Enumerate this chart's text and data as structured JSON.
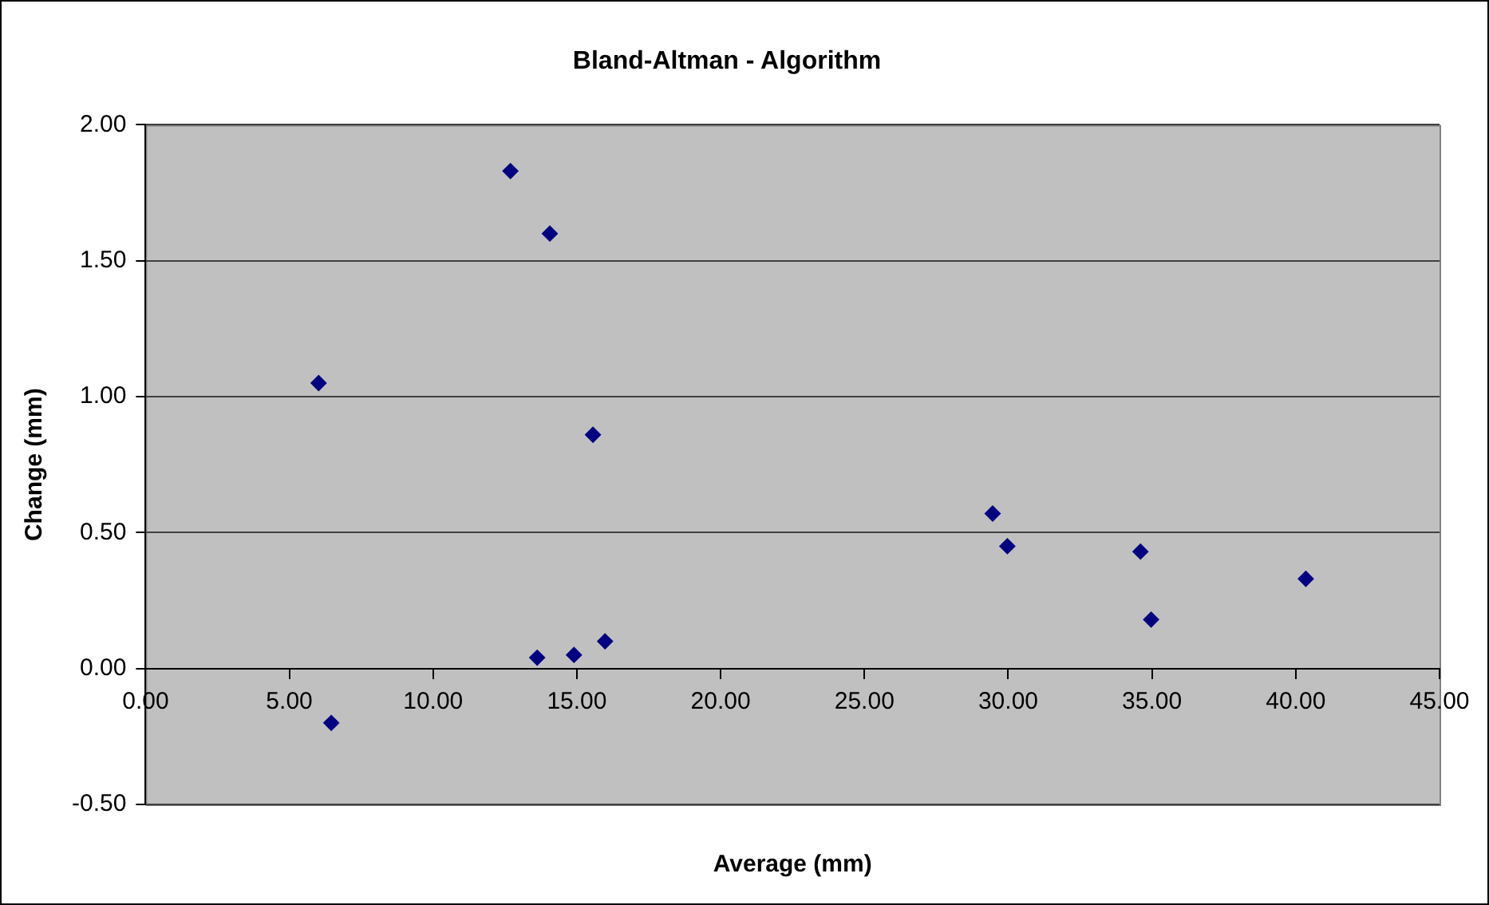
{
  "chart_data": {
    "type": "scatter",
    "title": "Bland-Altman - Algorithm",
    "xlabel": "Average (mm)",
    "ylabel": "Change (mm)",
    "x": [
      6.02,
      6.46,
      12.69,
      14.06,
      15.56,
      13.62,
      14.9,
      15.98,
      29.46,
      29.97,
      34.6,
      34.97,
      40.35
    ],
    "series": [
      {
        "color": "#000080",
        "values": [
          1.05,
          -0.2,
          1.83,
          1.6,
          0.86,
          0.04,
          0.05,
          0.1,
          0.57,
          0.45,
          0.43,
          0.18,
          0.33
        ]
      }
    ],
    "xlim": [
      0,
      45
    ],
    "ylim": [
      -0.5,
      2
    ],
    "xticks": [
      {
        "value": 0,
        "label": "0.00"
      },
      {
        "value": 5,
        "label": "5.00"
      },
      {
        "value": 10,
        "label": "10.00"
      },
      {
        "value": 15,
        "label": "15.00"
      },
      {
        "value": 20,
        "label": "20.00"
      },
      {
        "value": 25,
        "label": "25.00"
      },
      {
        "value": 30,
        "label": "30.00"
      },
      {
        "value": 35,
        "label": "35.00"
      },
      {
        "value": 40,
        "label": "40.00"
      },
      {
        "value": 45,
        "label": "45.00"
      }
    ],
    "yticks": [
      {
        "value": -0.5,
        "label": "-0.50"
      },
      {
        "value": 0,
        "label": "0.00"
      },
      {
        "value": 0.5,
        "label": "0.50"
      },
      {
        "value": 1,
        "label": "1.00"
      },
      {
        "value": 1.5,
        "label": "1.50"
      },
      {
        "value": 2,
        "label": "2.00"
      }
    ],
    "grid": "y",
    "marker": "diamond",
    "legend": false
  }
}
